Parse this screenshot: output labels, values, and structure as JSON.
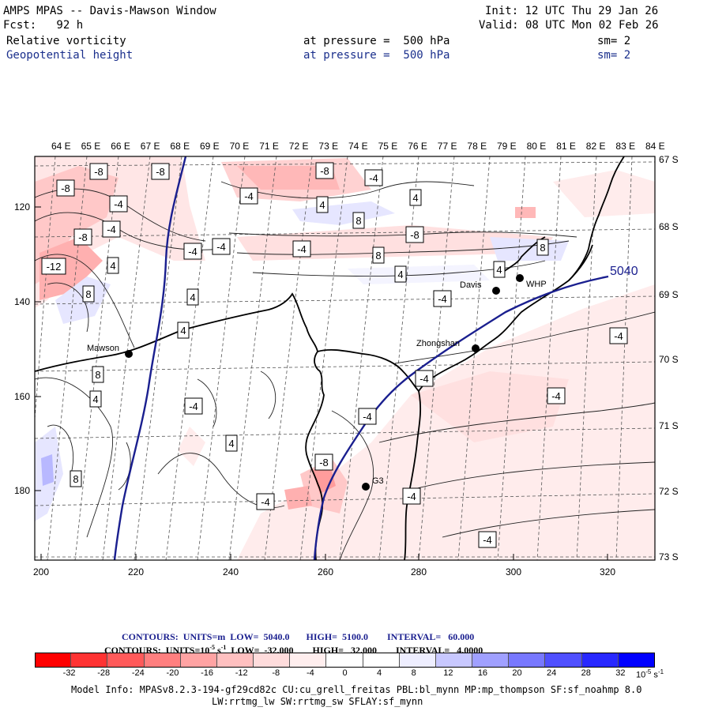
{
  "header": {
    "model_line": "AMPS MPAS -- Davis-Mawson Window",
    "fcst_line": "Fcst:   92 h",
    "init_line": "Init: 12 UTC Thu 29 Jan 26",
    "valid_line": "Valid: 08 UTC Mon 02 Feb 26",
    "field1_name": "Relative vorticity",
    "field1_level": "at pressure =  500 hPa",
    "field1_sm": "sm= 2",
    "field2_name": "Geopotential height",
    "field2_level": "at pressure =  500 hPa",
    "field2_sm": "sm= 2"
  },
  "map": {
    "top_longitude_labels": [
      "64 E",
      "65 E",
      "66 E",
      "67 E",
      "68 E",
      "69 E",
      "70 E",
      "71 E",
      "72 E",
      "73 E",
      "74 E",
      "75 E",
      "76 E",
      "77 E",
      "78 E",
      "79 E",
      "80 E",
      "81 E",
      "82 E",
      "83 E",
      "84 E"
    ],
    "right_latitude_labels": [
      "67 S",
      "68 S",
      "69 S",
      "70 S",
      "71 S",
      "72 S",
      "73 S"
    ],
    "x_axis_labels": [
      "200",
      "220",
      "240",
      "260",
      "280",
      "300",
      "320"
    ],
    "y_axis_labels": [
      "120",
      "140",
      "160",
      "180"
    ],
    "stations": [
      {
        "name": "Mawson"
      },
      {
        "name": "Davis"
      },
      {
        "name": "WHP"
      },
      {
        "name": "Zhongshan"
      },
      {
        "name": "G3"
      }
    ],
    "height_contour_label": "5040",
    "vorticity_labels": [
      "-8",
      "-8",
      "-8",
      "-8",
      "-4",
      "-4",
      "-4",
      "-4",
      "4",
      "-12",
      "8",
      "4",
      "-8",
      "-4",
      "-4",
      "8",
      "-8",
      "8",
      "4",
      "4",
      "8",
      "-4",
      "4",
      "4",
      "-4",
      "8",
      "4",
      "-4",
      "-4",
      "-4",
      "-4",
      "-4",
      "4",
      "8",
      "-8",
      "-4",
      "-4",
      "-4",
      "4"
    ],
    "colors": {
      "height_contour": "#1a1f8f",
      "coastline": "#000000"
    }
  },
  "legend": {
    "height_contours": "CONTOURS:  UNITS=m  LOW=  5040.0       HIGH=  5100.0        INTERVAL=   60.000",
    "vort_contours_prefix": "CONTOURS:  UNITS=10",
    "vort_contours_exp": "-5",
    "vort_contours_unit": " s",
    "vort_contours_unitexp": "-1",
    "vort_contours_rest": "  LOW=  -32.000        HIGH=   32.000        INTERVAL=   4.0000",
    "colorbar_labels": [
      "-32",
      "-28",
      "-24",
      "-20",
      "-16",
      "-12",
      "-8",
      "-4",
      "0",
      "4",
      "8",
      "12",
      "16",
      "20",
      "24",
      "28",
      "32"
    ],
    "colorbar_unit": "10",
    "colorbar_unit_exp1": "-5",
    "colorbar_unit_s": " s",
    "colorbar_unit_exp2": "-1",
    "colorbar_colors": [
      "#ff0000",
      "#ff3333",
      "#ff5a5a",
      "#ff7f7f",
      "#ffa3a3",
      "#ffc0c0",
      "#ffdcdc",
      "#ffeeee",
      "#ffffff",
      "#ffffff",
      "#eeeeff",
      "#c8c8ff",
      "#a0a0ff",
      "#7878ff",
      "#5050ff",
      "#2828ff",
      "#0000ff"
    ]
  },
  "footer": {
    "model_info_1": "Model Info: MPASv8.2.3-194-gf29cd82c CU:cu_grell_freitas PBL:bl_mynn MP:mp_thompson SF:sf_noahmp 8.0",
    "model_info_2": "LW:rrtmg_lw SW:rrtmg_sw SFLAY:sf_mynn"
  }
}
